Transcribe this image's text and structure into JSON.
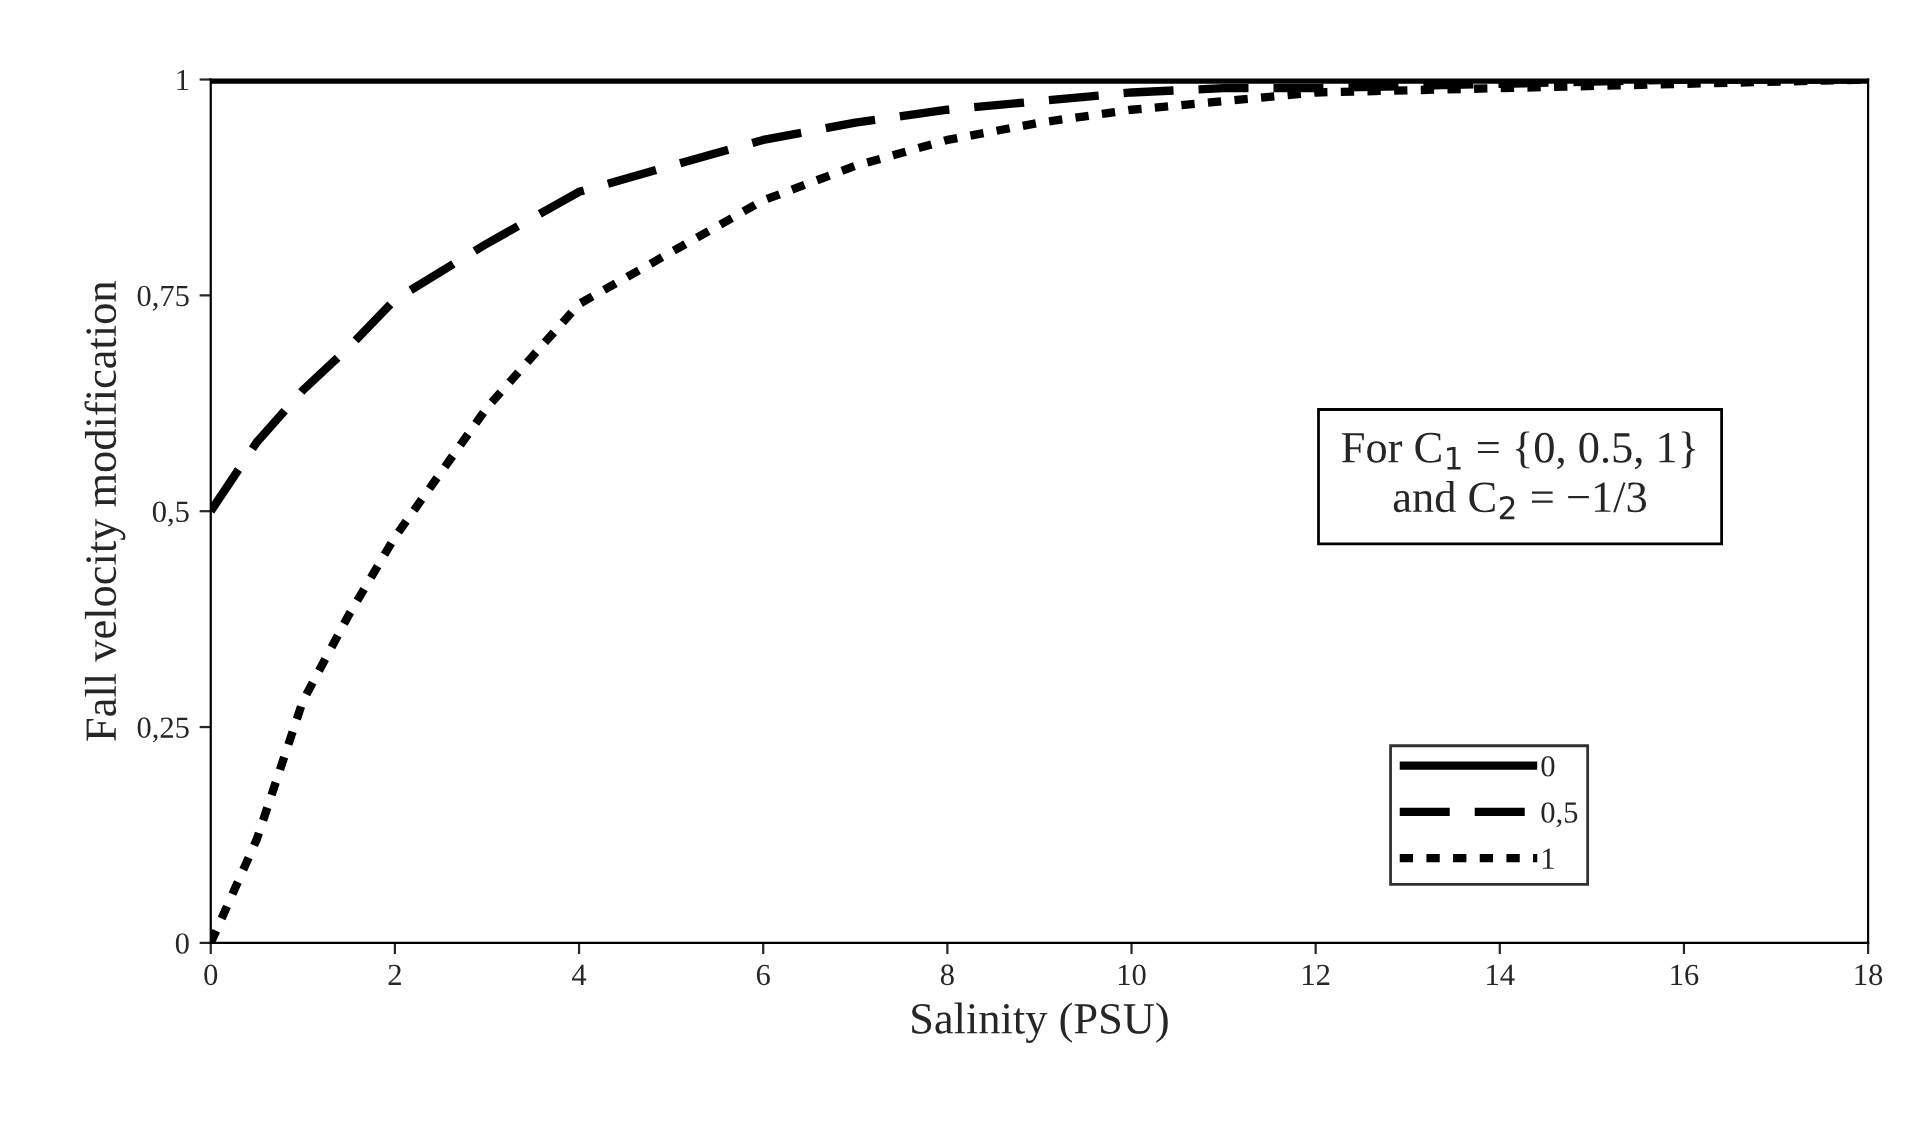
{
  "chart_data": {
    "type": "line",
    "xlabel": "Salinity (PSU)",
    "ylabel": "Fall velocity modification",
    "x": [
      0,
      0.5,
      1,
      1.5,
      2,
      3,
      4,
      5,
      6,
      7,
      8,
      9,
      10,
      11,
      12,
      14,
      16,
      18
    ],
    "series": [
      {
        "name": "0",
        "color": "#000000",
        "line_style": "solid",
        "values": [
          1,
          1,
          1,
          1,
          1,
          1,
          1,
          1,
          1,
          1,
          1,
          1,
          1,
          1,
          1,
          1,
          1,
          1
        ]
      },
      {
        "name": "0,5",
        "color": "#000000",
        "line_style": "dashed",
        "values": [
          0.5,
          0.58,
          0.64,
          0.69,
          0.745,
          0.81,
          0.87,
          0.9,
          0.93,
          0.95,
          0.965,
          0.975,
          0.985,
          0.99,
          0.99,
          0.995,
          1,
          1
        ]
      },
      {
        "name": "1",
        "color": "#000000",
        "line_style": "dotted",
        "values": [
          0,
          0.12,
          0.28,
          0.38,
          0.47,
          0.62,
          0.74,
          0.8,
          0.86,
          0.9,
          0.93,
          0.95,
          0.965,
          0.975,
          0.985,
          0.99,
          0.995,
          1
        ]
      }
    ],
    "xlim": [
      0,
      18
    ],
    "xticks": [
      0,
      2,
      4,
      6,
      8,
      10,
      12,
      14,
      16,
      18
    ],
    "ylim": [
      0,
      1
    ],
    "yticks": [
      0,
      {
        "value": 0.25,
        "label": "0,25"
      },
      {
        "value": 0.5,
        "label": "0,5"
      },
      {
        "value": 0.75,
        "label": "0,75"
      },
      1
    ],
    "annotations": [
      "For C$_{1}$ = {0, 0.5, 1}\nand C$_{2}$ = −1/3"
    ],
    "grid": false,
    "legend": "bottom right",
    "marker": "none"
  }
}
